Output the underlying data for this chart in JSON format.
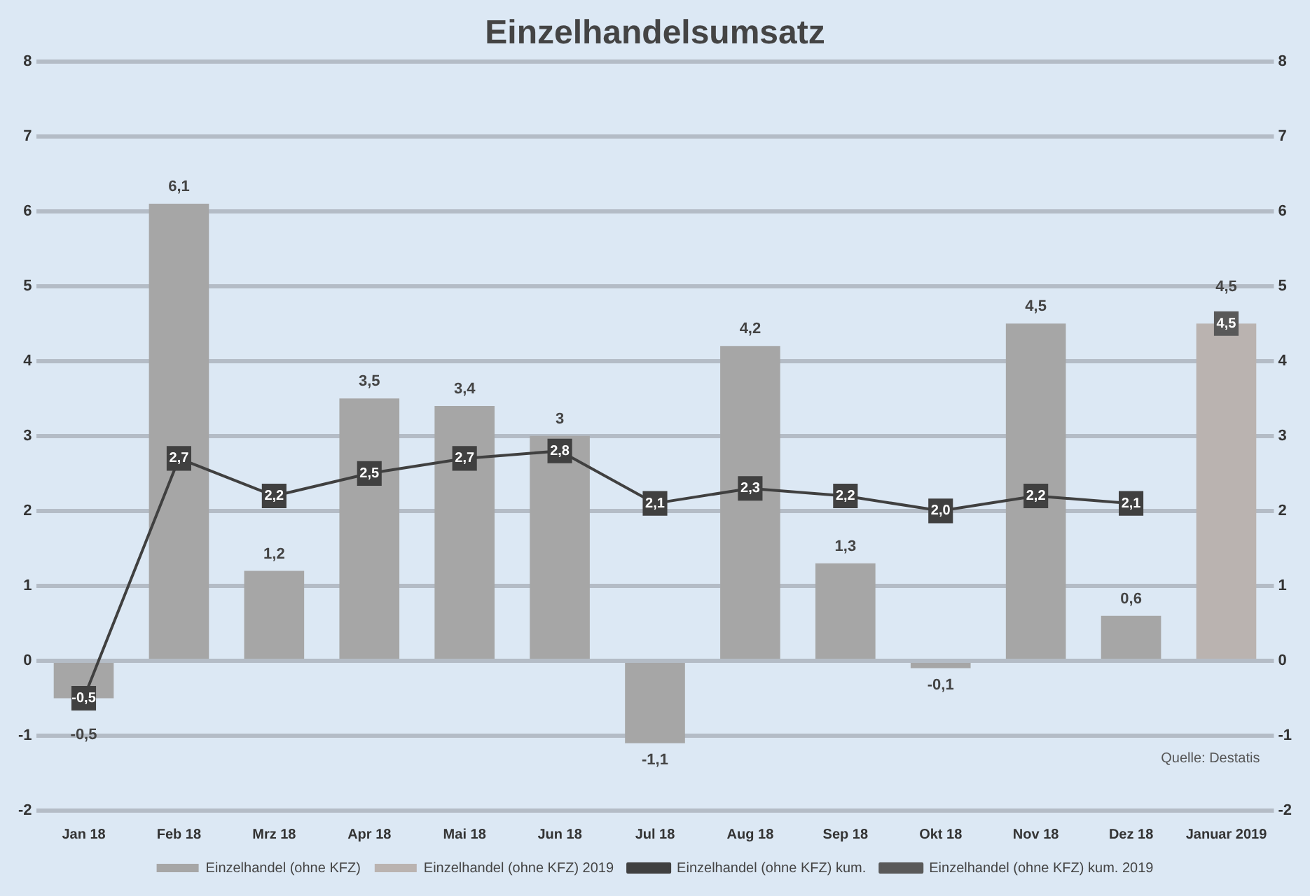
{
  "chart_data": {
    "type": "bar",
    "title": "Einzelhandelsumsatz",
    "categories": [
      "Jan 18",
      "Feb 18",
      "Mrz 18",
      "Apr 18",
      "Mai 18",
      "Jun 18",
      "Jul 18",
      "Aug 18",
      "Sep 18",
      "Okt 18",
      "Nov 18",
      "Dez 18",
      "Januar 2019"
    ],
    "series": [
      {
        "name": "Einzelhandel (ohne KFZ)",
        "color": "#a6a6a6",
        "values": [
          -0.5,
          6.1,
          1.2,
          3.5,
          3.4,
          3,
          -1.1,
          4.2,
          1.3,
          -0.1,
          4.5,
          0.6,
          null
        ],
        "value_labels": [
          "-0,5",
          "6,1",
          "1,2",
          "3,5",
          "3,4",
          "3",
          "-1,1",
          "4,2",
          "1,3",
          "-0,1",
          "4,5",
          "0,6",
          null
        ]
      },
      {
        "name": "Einzelhandel (ohne KFZ) 2019",
        "color": "#bab3b0",
        "values": [
          null,
          null,
          null,
          null,
          null,
          null,
          null,
          null,
          null,
          null,
          null,
          null,
          4.5
        ],
        "value_labels": [
          null,
          null,
          null,
          null,
          null,
          null,
          null,
          null,
          null,
          null,
          null,
          null,
          "4,5"
        ]
      },
      {
        "name": "Einzelhandel (ohne KFZ) kum.",
        "type": "line",
        "color": "#404040",
        "values": [
          -0.5,
          2.7,
          2.2,
          2.5,
          2.7,
          2.8,
          2.1,
          2.3,
          2.2,
          2.0,
          2.2,
          2.1,
          null
        ],
        "value_labels": [
          "-0,5",
          "2,7",
          "2,2",
          "2,5",
          "2,7",
          "2,8",
          "2,1",
          "2,3",
          "2,2",
          "2,0",
          "2,2",
          "2,1",
          null
        ]
      },
      {
        "name": "Einzelhandel (ohne KFZ) kum. 2019",
        "type": "line",
        "color": "#595959",
        "values": [
          null,
          null,
          null,
          null,
          null,
          null,
          null,
          null,
          null,
          null,
          null,
          null,
          4.5
        ],
        "value_labels": [
          null,
          null,
          null,
          null,
          null,
          null,
          null,
          null,
          null,
          null,
          null,
          null,
          "4,5"
        ]
      }
    ],
    "ylim": [
      -2,
      8
    ],
    "yticks": [
      -2,
      -1,
      0,
      1,
      2,
      3,
      4,
      5,
      6,
      7,
      8
    ],
    "y2lim": [
      -2,
      8
    ],
    "y2ticks": [
      -2,
      -1,
      0,
      1,
      2,
      3,
      4,
      5,
      6,
      7,
      8
    ],
    "grid": "y",
    "legend": "bottom",
    "marker": "square",
    "line_style": "solid",
    "annotations": [
      "Quelle: Destatis"
    ]
  }
}
